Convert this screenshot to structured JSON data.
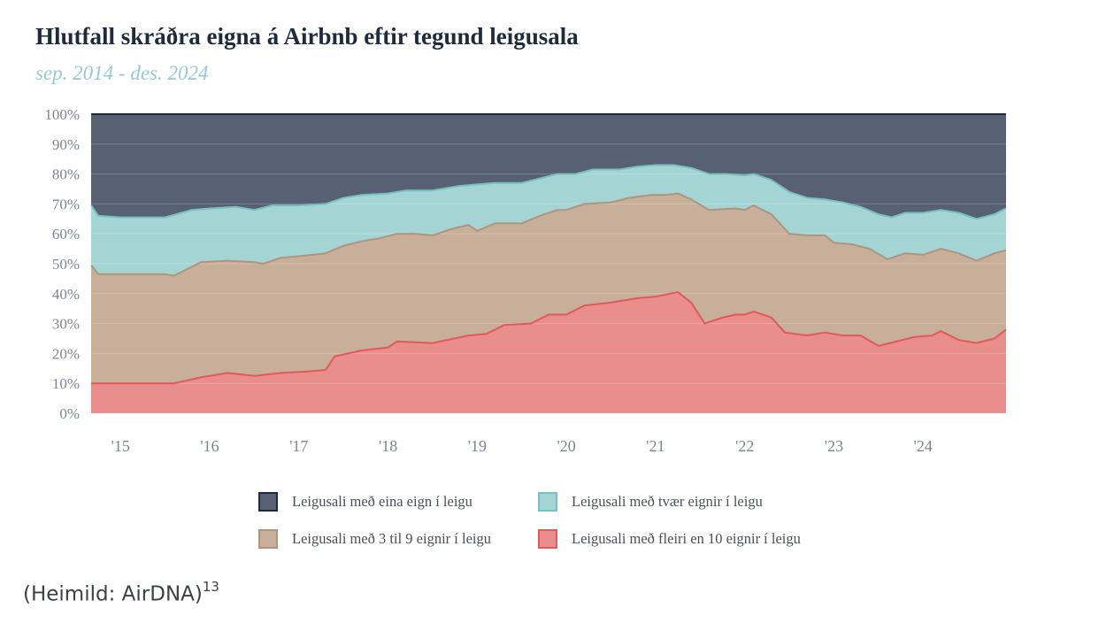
{
  "title": "Hlutfall skráðra eigna á Airbnb eftir tegund leigusala",
  "subtitle": "sep. 2014 - des. 2024",
  "source": {
    "text": "(Heimild: AirDNA)",
    "footnote": "13"
  },
  "chart_data": {
    "type": "area",
    "stacked": true,
    "x_start": "2014-09",
    "x_end": "2024-12",
    "xlim": [
      2014.67,
      2024.93
    ],
    "ylim": [
      0,
      100
    ],
    "y_unit": "%",
    "y_ticks": [
      "0%",
      "10%",
      "20%",
      "30%",
      "40%",
      "50%",
      "60%",
      "70%",
      "80%",
      "90%",
      "100%"
    ],
    "x_ticks": [
      {
        "x": 2015.0,
        "label": "'15"
      },
      {
        "x": 2016.0,
        "label": "'16"
      },
      {
        "x": 2017.0,
        "label": "'17"
      },
      {
        "x": 2018.0,
        "label": "'18"
      },
      {
        "x": 2019.0,
        "label": "'19"
      },
      {
        "x": 2020.0,
        "label": "'20"
      },
      {
        "x": 2021.0,
        "label": "'21"
      },
      {
        "x": 2022.0,
        "label": "'22"
      },
      {
        "x": 2023.0,
        "label": "'23"
      },
      {
        "x": 2024.0,
        "label": "'24"
      }
    ],
    "grid": true,
    "legend_position": "bottom",
    "series": [
      {
        "name": "Leigusali með fleiri en 10 eignir í leigu",
        "color": "#e98e8c",
        "line": "#e05a5a",
        "swatch_border": "#e05a5a",
        "cum_top_points": [
          [
            2014.67,
            10
          ],
          [
            2015.0,
            10
          ],
          [
            2015.3,
            10
          ],
          [
            2015.6,
            10
          ],
          [
            2015.9,
            12
          ],
          [
            2016.2,
            13.5
          ],
          [
            2016.5,
            12.5
          ],
          [
            2016.8,
            13.5
          ],
          [
            2017.1,
            14
          ],
          [
            2017.3,
            14.5
          ],
          [
            2017.4,
            19
          ],
          [
            2017.7,
            21
          ],
          [
            2018.0,
            22
          ],
          [
            2018.1,
            24
          ],
          [
            2018.5,
            23.5
          ],
          [
            2018.9,
            26
          ],
          [
            2019.1,
            26.5
          ],
          [
            2019.3,
            29.5
          ],
          [
            2019.6,
            30
          ],
          [
            2019.8,
            33
          ],
          [
            2020.0,
            33
          ],
          [
            2020.2,
            36
          ],
          [
            2020.5,
            37
          ],
          [
            2020.8,
            38.5
          ],
          [
            2021.0,
            39
          ],
          [
            2021.25,
            40.5
          ],
          [
            2021.4,
            37
          ],
          [
            2021.55,
            30
          ],
          [
            2021.75,
            32
          ],
          [
            2021.9,
            33
          ],
          [
            2022.0,
            33
          ],
          [
            2022.1,
            34
          ],
          [
            2022.3,
            32
          ],
          [
            2022.45,
            27
          ],
          [
            2022.7,
            26
          ],
          [
            2022.9,
            27
          ],
          [
            2023.1,
            26
          ],
          [
            2023.3,
            26
          ],
          [
            2023.5,
            22.5
          ],
          [
            2023.7,
            24
          ],
          [
            2023.9,
            25.5
          ],
          [
            2024.1,
            26
          ],
          [
            2024.2,
            27.5
          ],
          [
            2024.4,
            24.5
          ],
          [
            2024.6,
            23.5
          ],
          [
            2024.8,
            25
          ],
          [
            2024.93,
            28
          ]
        ]
      },
      {
        "name": "Leigusali með 3 til 9 eignir í leigu",
        "color": "#c8af99",
        "line": "#ad9580",
        "swatch_border": "#ad9580",
        "cum_top_points": [
          [
            2014.67,
            49.5
          ],
          [
            2014.75,
            46.5
          ],
          [
            2015.0,
            46.5
          ],
          [
            2015.5,
            46.5
          ],
          [
            2015.6,
            46
          ],
          [
            2015.8,
            49
          ],
          [
            2015.9,
            50.5
          ],
          [
            2016.2,
            51
          ],
          [
            2016.5,
            50.5
          ],
          [
            2016.6,
            50
          ],
          [
            2016.8,
            52
          ],
          [
            2017.0,
            52.5
          ],
          [
            2017.3,
            53.5
          ],
          [
            2017.5,
            56
          ],
          [
            2017.7,
            57.5
          ],
          [
            2017.9,
            58.5
          ],
          [
            2018.1,
            60
          ],
          [
            2018.3,
            60
          ],
          [
            2018.5,
            59.5
          ],
          [
            2018.7,
            61.5
          ],
          [
            2018.9,
            63
          ],
          [
            2019.0,
            61
          ],
          [
            2019.2,
            63.5
          ],
          [
            2019.5,
            63.5
          ],
          [
            2019.7,
            66
          ],
          [
            2019.9,
            68
          ],
          [
            2020.0,
            68
          ],
          [
            2020.2,
            70
          ],
          [
            2020.5,
            70.5
          ],
          [
            2020.7,
            72
          ],
          [
            2020.95,
            73
          ],
          [
            2021.1,
            73
          ],
          [
            2021.25,
            73.5
          ],
          [
            2021.4,
            71.5
          ],
          [
            2021.6,
            68
          ],
          [
            2021.9,
            68.5
          ],
          [
            2022.0,
            68
          ],
          [
            2022.1,
            69.5
          ],
          [
            2022.3,
            66.5
          ],
          [
            2022.5,
            60
          ],
          [
            2022.7,
            59.5
          ],
          [
            2022.9,
            59.5
          ],
          [
            2023.0,
            57
          ],
          [
            2023.2,
            56.5
          ],
          [
            2023.4,
            55
          ],
          [
            2023.6,
            51.5
          ],
          [
            2023.8,
            53.5
          ],
          [
            2024.0,
            53
          ],
          [
            2024.2,
            55
          ],
          [
            2024.4,
            53.5
          ],
          [
            2024.6,
            51
          ],
          [
            2024.8,
            53.5
          ],
          [
            2024.93,
            54.5
          ]
        ]
      },
      {
        "name": "Leigusali með tvær eignir í leigu",
        "color": "#a4d5d4",
        "line": "#77bfc2",
        "swatch_border": "#77bfc2",
        "cum_top_points": [
          [
            2014.67,
            69.5
          ],
          [
            2014.75,
            66
          ],
          [
            2015.0,
            65.5
          ],
          [
            2015.5,
            65.5
          ],
          [
            2015.8,
            68
          ],
          [
            2016.0,
            68.5
          ],
          [
            2016.3,
            69
          ],
          [
            2016.5,
            68
          ],
          [
            2016.7,
            69.5
          ],
          [
            2017.0,
            69.5
          ],
          [
            2017.3,
            70
          ],
          [
            2017.5,
            72
          ],
          [
            2017.7,
            73
          ],
          [
            2018.0,
            73.5
          ],
          [
            2018.2,
            74.5
          ],
          [
            2018.5,
            74.5
          ],
          [
            2018.8,
            76
          ],
          [
            2019.0,
            76.5
          ],
          [
            2019.2,
            77
          ],
          [
            2019.5,
            77
          ],
          [
            2019.7,
            78.5
          ],
          [
            2019.9,
            80
          ],
          [
            2020.1,
            80
          ],
          [
            2020.3,
            81.5
          ],
          [
            2020.6,
            81.5
          ],
          [
            2020.8,
            82.5
          ],
          [
            2021.0,
            83
          ],
          [
            2021.2,
            83
          ],
          [
            2021.4,
            82
          ],
          [
            2021.6,
            80
          ],
          [
            2021.8,
            80
          ],
          [
            2022.0,
            79.5
          ],
          [
            2022.1,
            80
          ],
          [
            2022.3,
            78
          ],
          [
            2022.5,
            74
          ],
          [
            2022.7,
            72
          ],
          [
            2022.9,
            71.5
          ],
          [
            2023.1,
            70.5
          ],
          [
            2023.3,
            69
          ],
          [
            2023.5,
            66.5
          ],
          [
            2023.65,
            65.5
          ],
          [
            2023.8,
            67
          ],
          [
            2024.0,
            67
          ],
          [
            2024.2,
            68
          ],
          [
            2024.4,
            67
          ],
          [
            2024.6,
            65
          ],
          [
            2024.8,
            66.5
          ],
          [
            2024.93,
            68.5
          ]
        ]
      },
      {
        "name": "Leigusali með eina eign í leigu",
        "color": "#576173",
        "line": "#1f2a3c",
        "swatch_border": "#1f2a3c",
        "cum_top_points": [
          [
            2014.67,
            100
          ],
          [
            2024.93,
            100
          ]
        ]
      }
    ]
  },
  "legend": {
    "items": [
      {
        "label": "Leigusali með eina eign í leigu",
        "fill": "#576173",
        "border": "#1f2a3c"
      },
      {
        "label": "Leigusali með tvær eignir í leigu",
        "fill": "#a4d5d4",
        "border": "#77bfc2"
      },
      {
        "label": "Leigusali með 3 til 9 eignir í leigu",
        "fill": "#c8af99",
        "border": "#ad9580"
      },
      {
        "label": "Leigusali með fleiri en 10 eignir í leigu",
        "fill": "#e98e8c",
        "border": "#e05a5a"
      }
    ]
  }
}
